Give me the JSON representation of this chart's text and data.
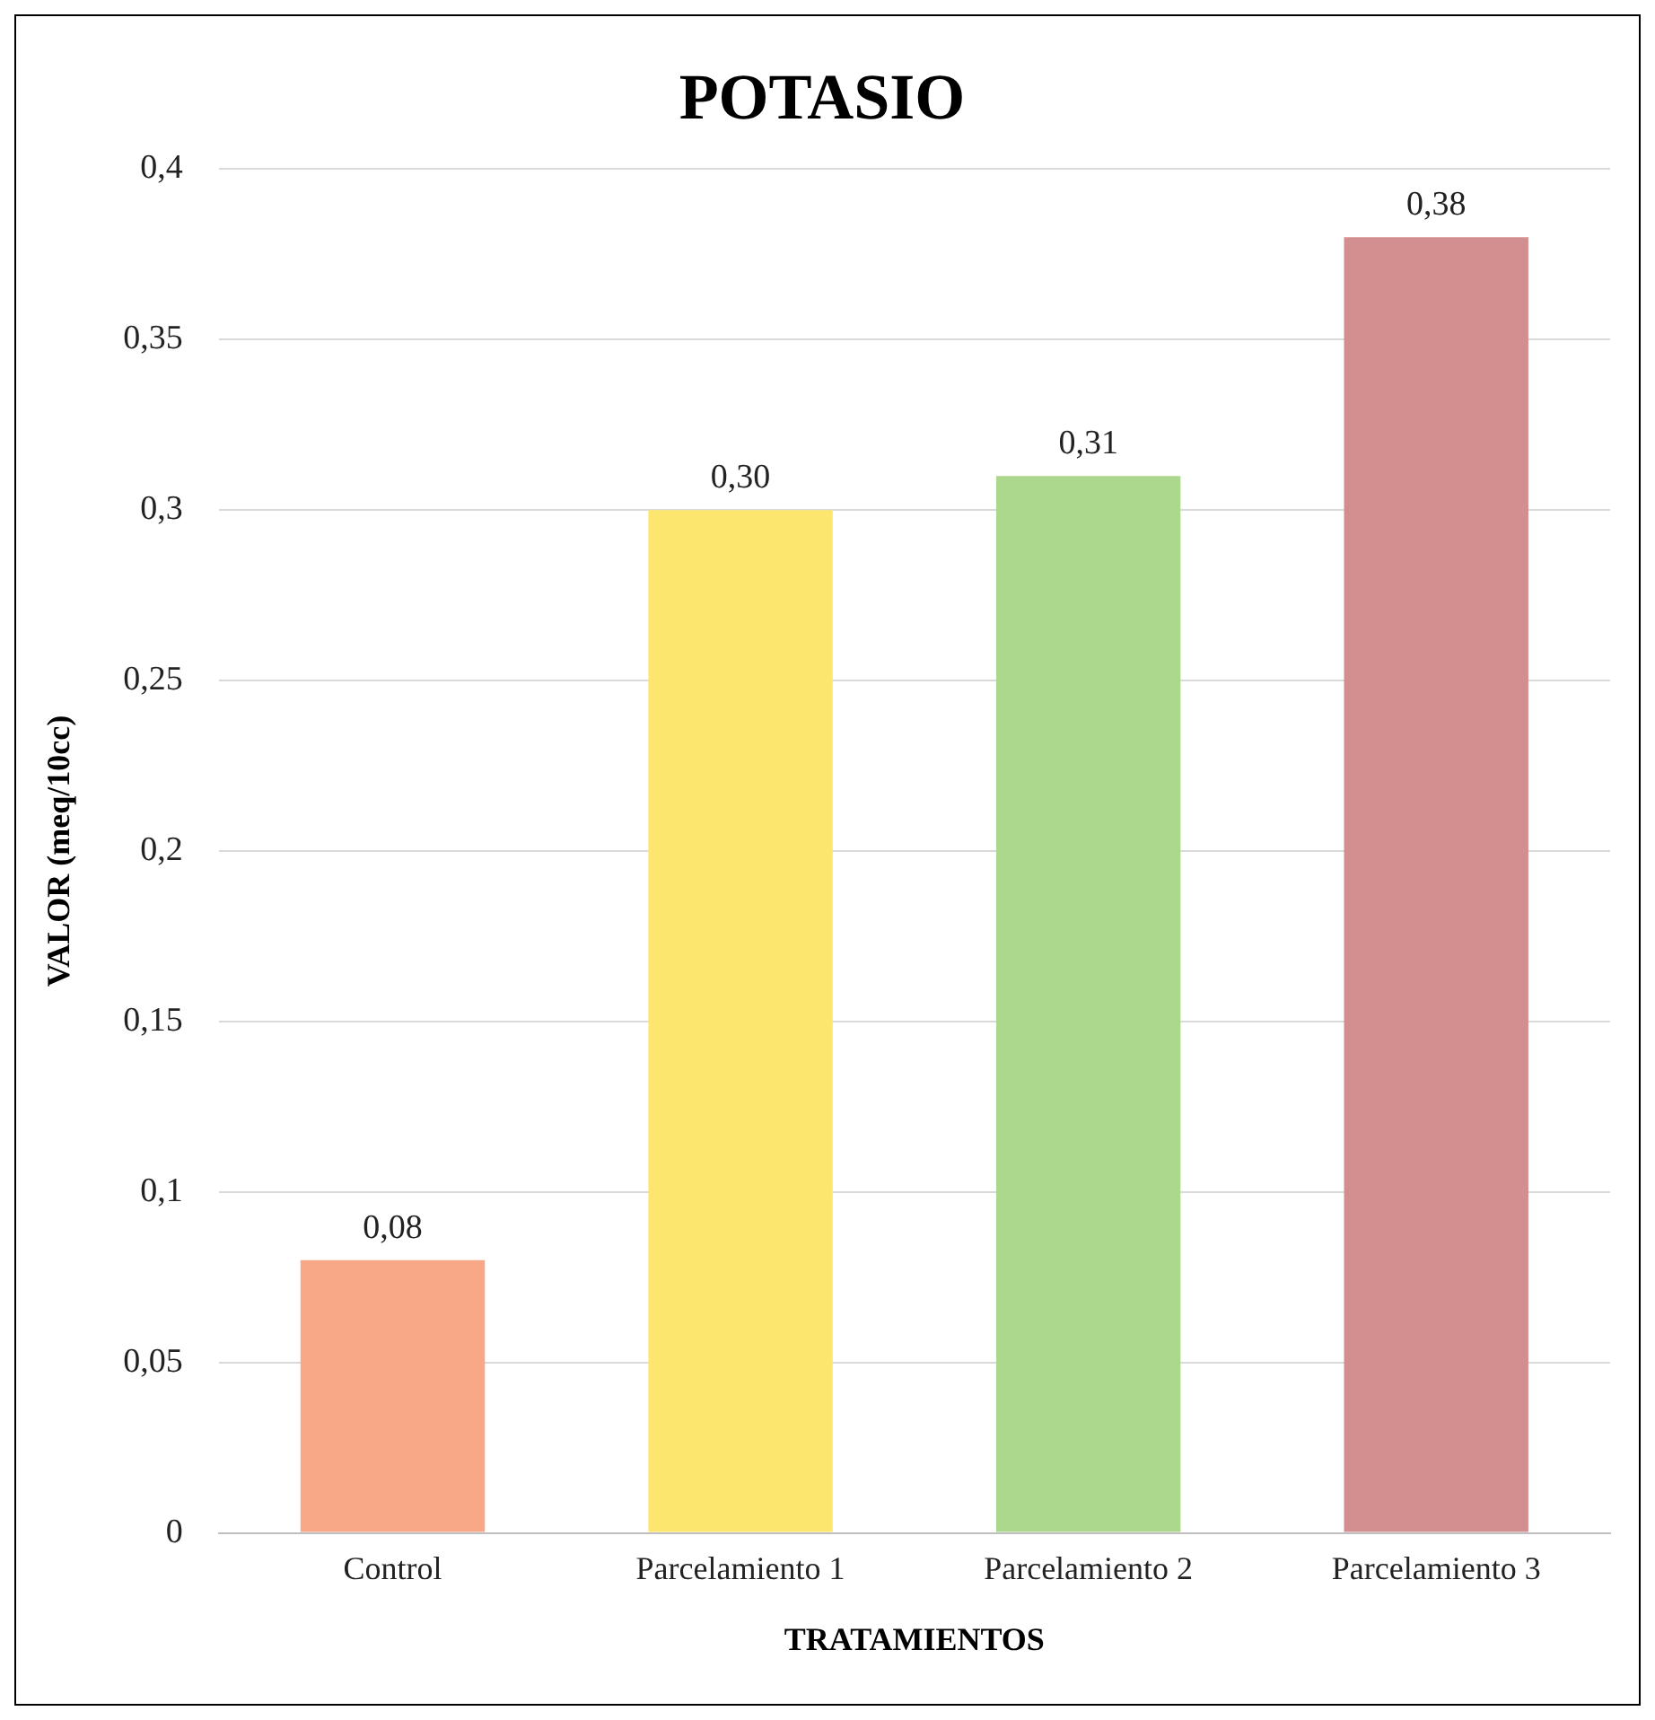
{
  "chart_data": {
    "type": "bar",
    "title": "POTASIO",
    "xlabel": "TRATAMIENTOS",
    "ylabel": "VALOR (meq/10cc)",
    "categories": [
      "Control",
      "Parcelamiento 1",
      "Parcelamiento 2",
      "Parcelamiento 3"
    ],
    "values": [
      0.08,
      0.3,
      0.31,
      0.38
    ],
    "value_labels": [
      "0,08",
      "0,30",
      "0,31",
      "0,38"
    ],
    "colors": [
      "#f8a886",
      "#fde66e",
      "#acd88e",
      "#d38e90"
    ],
    "ylim": [
      0,
      0.4
    ],
    "yticks": [
      0,
      {
        "value": 0.05,
        "label": "0,05"
      },
      {
        "value": 0.1,
        "label": "0,1"
      },
      {
        "value": 0.15,
        "label": "0,15"
      },
      {
        "value": 0.2,
        "label": "0,2"
      },
      {
        "value": 0.25,
        "label": "0,25"
      },
      {
        "value": 0.3,
        "label": "0,3"
      },
      {
        "value": 0.35,
        "label": "0,35"
      },
      {
        "value": 0.4,
        "label": "0,4"
      }
    ],
    "grid": "y",
    "legend": false
  }
}
